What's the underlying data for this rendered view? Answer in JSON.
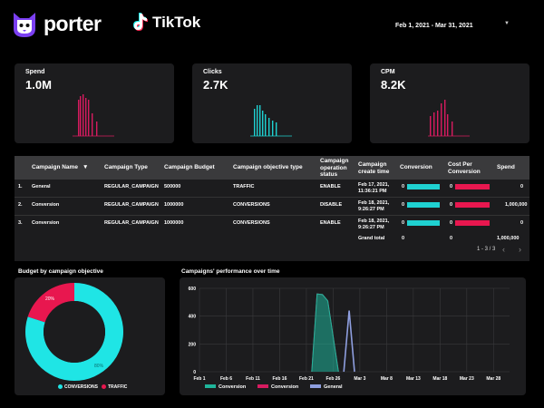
{
  "header": {
    "brand": "porter",
    "platform": "TikTok",
    "date_range": "Feb 1, 2021 - Mar 31, 2021"
  },
  "kpis": [
    {
      "label": "Spend",
      "value": "1.0M",
      "color": "#d81b60"
    },
    {
      "label": "Clicks",
      "value": "2.7K",
      "color": "#1fd1d1"
    },
    {
      "label": "CPM",
      "value": "8.2K",
      "color": "#d81b60"
    }
  ],
  "table": {
    "headers": [
      "Campaign Name",
      "Campaign Type",
      "Campaign Budget",
      "Campaign objective type",
      "Campaign operation status",
      "Campaign create time",
      "Conversion",
      "Cost Per Conversion",
      "Spend"
    ],
    "sort_indicator": "▼",
    "rows": [
      {
        "idx": "1.",
        "name": "General",
        "type": "REGULAR_CAMPAIGN",
        "budget": "500000",
        "objective": "TRAFFIC",
        "status": "ENABLE",
        "created": "Feb 17, 2021, 11:36:21 PM",
        "conversion": "0",
        "conversion_fill": 1.0,
        "cpc": "0",
        "cpc_fill": 1.0,
        "spend": "0"
      },
      {
        "idx": "2.",
        "name": "Conversion",
        "type": "REGULAR_CAMPAIGN",
        "budget": "1000000",
        "objective": "CONVERSIONS",
        "status": "DISABLE",
        "created": "Feb 18, 2021, 9:26:27 PM",
        "conversion": "0",
        "conversion_fill": 1.0,
        "cpc": "0",
        "cpc_fill": 1.0,
        "spend": "1,000,000"
      },
      {
        "idx": "3.",
        "name": "Conversion",
        "type": "REGULAR_CAMPAIGN",
        "budget": "1000000",
        "objective": "CONVERSIONS",
        "status": "ENABLE",
        "created": "Feb 18, 2021, 9:26:27 PM",
        "conversion": "0",
        "conversion_fill": 1.0,
        "cpc": "0",
        "cpc_fill": 1.0,
        "spend": "0"
      }
    ],
    "grand_total": {
      "label": "Grand total",
      "conversion": "0",
      "cpc": "0",
      "spend": "1,000,000"
    },
    "pager": "1 - 3 / 3"
  },
  "donut": {
    "title": "Budget by campaign objective",
    "chart_data": {
      "type": "pie",
      "categories": [
        "CONVERSIONS",
        "TRAFFIC"
      ],
      "values": [
        80,
        20
      ],
      "labels": [
        "80%",
        "20%"
      ],
      "colors": [
        "#1fe5e5",
        "#e8174f"
      ],
      "legend_position": "bottom"
    }
  },
  "line": {
    "title": "Campaigns' performance over time",
    "chart_data": {
      "type": "area",
      "x": [
        "Feb 1",
        "Feb 6",
        "Feb 11",
        "Feb 16",
        "Feb 21",
        "Feb 26",
        "Mar 3",
        "Mar 8",
        "Mar 13",
        "Mar 18",
        "Mar 23",
        "Mar 28"
      ],
      "ylim": [
        0,
        600
      ],
      "yticks": [
        "0",
        "200",
        "400",
        "600"
      ],
      "series": [
        {
          "name": "Conversion",
          "color": "#1fb59a",
          "points": [
            [
              "Feb 22",
              0
            ],
            [
              "Feb 23",
              560
            ],
            [
              "Feb 24",
              555
            ],
            [
              "Feb 25",
              510
            ],
            [
              "Feb 27",
              0
            ]
          ]
        },
        {
          "name": "Conversion",
          "color": "#d81b60",
          "points": [
            [
              "Feb 22",
              0
            ],
            [
              "Feb 23",
              560
            ],
            [
              "Feb 24",
              555
            ],
            [
              "Feb 25",
              510
            ],
            [
              "Feb 27",
              0
            ]
          ]
        },
        {
          "name": "General",
          "color": "#8f9fe0",
          "points": [
            [
              "Feb 28",
              0
            ],
            [
              "Mar 1",
              440
            ],
            [
              "Mar 2",
              0
            ]
          ]
        }
      ],
      "grid": true,
      "legend_position": "bottom"
    }
  }
}
